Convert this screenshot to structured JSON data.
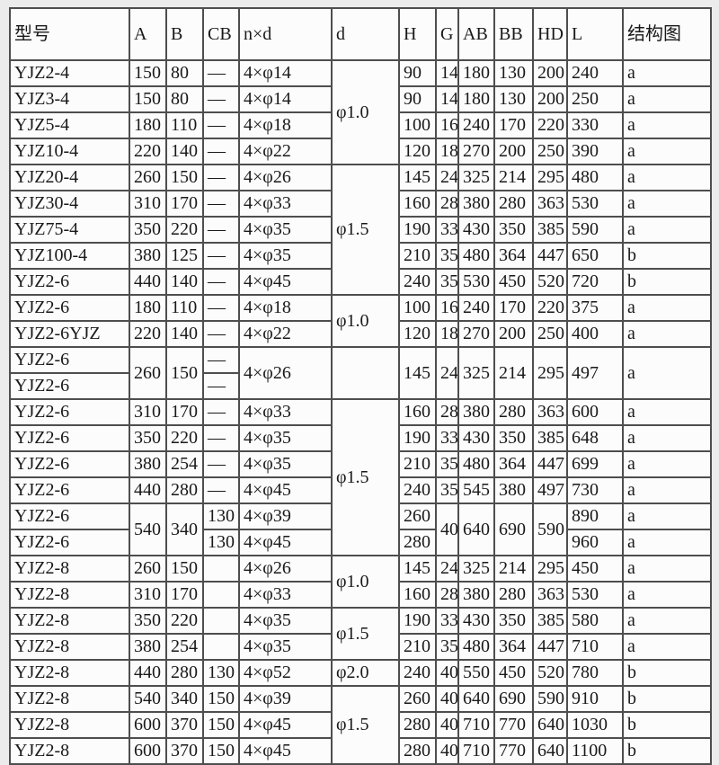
{
  "colors": {
    "page_bg": "#ececec",
    "cell_bg": "#fcfcfc",
    "grid_border": "#4e4e4e",
    "text": "#191919"
  },
  "table": {
    "columns": [
      "型号",
      "A",
      "B",
      "CB",
      "n×d",
      "d",
      "H",
      "G",
      "AB",
      "BB",
      "HD",
      "L",
      "结构图"
    ],
    "rows": [
      {
        "cells": [
          {
            "t": "YJZ2-4"
          },
          {
            "t": "150"
          },
          {
            "t": "80"
          },
          {
            "t": "—"
          },
          {
            "t": "4×φ14"
          },
          {
            "t": "φ1.0",
            "rs": 4
          },
          {
            "t": "90"
          },
          {
            "t": "14"
          },
          {
            "t": "180"
          },
          {
            "t": "130"
          },
          {
            "t": "200"
          },
          {
            "t": "240"
          },
          {
            "t": "a"
          }
        ]
      },
      {
        "cells": [
          {
            "t": "YJZ3-4"
          },
          {
            "t": "150"
          },
          {
            "t": "80"
          },
          {
            "t": "—"
          },
          {
            "t": "4×φ14"
          },
          {
            "t": "90"
          },
          {
            "t": "14"
          },
          {
            "t": "180"
          },
          {
            "t": "130"
          },
          {
            "t": "200"
          },
          {
            "t": "250"
          },
          {
            "t": "a"
          }
        ]
      },
      {
        "cells": [
          {
            "t": "YJZ5-4"
          },
          {
            "t": "180"
          },
          {
            "t": "110"
          },
          {
            "t": "—"
          },
          {
            "t": "4×φ18"
          },
          {
            "t": "100"
          },
          {
            "t": "16"
          },
          {
            "t": "240"
          },
          {
            "t": "170"
          },
          {
            "t": "220"
          },
          {
            "t": "330"
          },
          {
            "t": "a"
          }
        ]
      },
      {
        "cells": [
          {
            "t": "YJZ10-4"
          },
          {
            "t": "220"
          },
          {
            "t": "140"
          },
          {
            "t": "—"
          },
          {
            "t": "4×φ22"
          },
          {
            "t": "120"
          },
          {
            "t": "18"
          },
          {
            "t": "270"
          },
          {
            "t": "200"
          },
          {
            "t": "250"
          },
          {
            "t": "390"
          },
          {
            "t": "a"
          }
        ]
      },
      {
        "cells": [
          {
            "t": "YJZ20-4"
          },
          {
            "t": "260"
          },
          {
            "t": "150"
          },
          {
            "t": "—"
          },
          {
            "t": "4×φ26"
          },
          {
            "t": "φ1.5",
            "rs": 5
          },
          {
            "t": "145"
          },
          {
            "t": "24"
          },
          {
            "t": "325"
          },
          {
            "t": "214"
          },
          {
            "t": "295"
          },
          {
            "t": "480"
          },
          {
            "t": "a"
          }
        ]
      },
      {
        "cells": [
          {
            "t": "YJZ30-4"
          },
          {
            "t": "310"
          },
          {
            "t": "170"
          },
          {
            "t": "—"
          },
          {
            "t": "4×φ33"
          },
          {
            "t": "160"
          },
          {
            "t": "28"
          },
          {
            "t": "380"
          },
          {
            "t": "280"
          },
          {
            "t": "363"
          },
          {
            "t": "530"
          },
          {
            "t": "a"
          }
        ]
      },
      {
        "cells": [
          {
            "t": "YJZ75-4"
          },
          {
            "t": "350"
          },
          {
            "t": "220"
          },
          {
            "t": "—"
          },
          {
            "t": "4×φ35"
          },
          {
            "t": "190"
          },
          {
            "t": "33"
          },
          {
            "t": "430"
          },
          {
            "t": "350"
          },
          {
            "t": "385"
          },
          {
            "t": "590"
          },
          {
            "t": "a"
          }
        ]
      },
      {
        "cells": [
          {
            "t": "YJZ100-4"
          },
          {
            "t": "380"
          },
          {
            "t": "125"
          },
          {
            "t": "—"
          },
          {
            "t": "4×φ35"
          },
          {
            "t": "210"
          },
          {
            "t": "35"
          },
          {
            "t": "480"
          },
          {
            "t": "364"
          },
          {
            "t": "447"
          },
          {
            "t": "650"
          },
          {
            "t": "b"
          }
        ]
      },
      {
        "cells": [
          {
            "t": "YJZ2-6"
          },
          {
            "t": "440"
          },
          {
            "t": "140"
          },
          {
            "t": "—"
          },
          {
            "t": "4×φ45"
          },
          {
            "t": "240"
          },
          {
            "t": "35"
          },
          {
            "t": "530"
          },
          {
            "t": "450"
          },
          {
            "t": "520"
          },
          {
            "t": "720"
          },
          {
            "t": "b"
          }
        ]
      },
      {
        "cells": [
          {
            "t": "YJZ2-6"
          },
          {
            "t": "180"
          },
          {
            "t": "110"
          },
          {
            "t": "—"
          },
          {
            "t": "4×φ18"
          },
          {
            "t": "φ1.0",
            "rs": 2
          },
          {
            "t": "100"
          },
          {
            "t": "16"
          },
          {
            "t": "240"
          },
          {
            "t": "170"
          },
          {
            "t": "220"
          },
          {
            "t": "375"
          },
          {
            "t": "a"
          }
        ]
      },
      {
        "cells": [
          {
            "t": "YJZ2-6YJZ"
          },
          {
            "t": "220"
          },
          {
            "t": "140"
          },
          {
            "t": "—"
          },
          {
            "t": "4×φ22"
          },
          {
            "t": "120"
          },
          {
            "t": "18"
          },
          {
            "t": "270"
          },
          {
            "t": "200"
          },
          {
            "t": "250"
          },
          {
            "t": "400"
          },
          {
            "t": "a"
          }
        ]
      },
      {
        "cells": [
          {
            "t": "YJZ2-6"
          },
          {
            "t": "260",
            "rs": 2
          },
          {
            "t": "150",
            "rs": 2
          },
          {
            "t": "—"
          },
          {
            "t": "4×φ26",
            "rs": 2
          },
          {
            "t": "",
            "rs": 2
          },
          {
            "t": "145",
            "rs": 2
          },
          {
            "t": "24",
            "rs": 2
          },
          {
            "t": "325",
            "rs": 2
          },
          {
            "t": "214",
            "rs": 2
          },
          {
            "t": "295",
            "rs": 2
          },
          {
            "t": "497",
            "rs": 2
          },
          {
            "t": "a",
            "rs": 2
          }
        ]
      },
      {
        "cells": [
          {
            "t": "YJZ2-6"
          },
          {
            "t": "—"
          }
        ]
      },
      {
        "cells": [
          {
            "t": "YJZ2-6"
          },
          {
            "t": "310"
          },
          {
            "t": "170"
          },
          {
            "t": "—"
          },
          {
            "t": "4×φ33"
          },
          {
            "t": "φ1.5",
            "rs": 6
          },
          {
            "t": "160"
          },
          {
            "t": "28"
          },
          {
            "t": "380"
          },
          {
            "t": "280"
          },
          {
            "t": "363"
          },
          {
            "t": "600"
          },
          {
            "t": "a"
          }
        ]
      },
      {
        "cells": [
          {
            "t": "YJZ2-6"
          },
          {
            "t": "350"
          },
          {
            "t": "220"
          },
          {
            "t": "—"
          },
          {
            "t": "4×φ35"
          },
          {
            "t": "190"
          },
          {
            "t": "33"
          },
          {
            "t": "430"
          },
          {
            "t": "350"
          },
          {
            "t": "385"
          },
          {
            "t": "648"
          },
          {
            "t": "a"
          }
        ]
      },
      {
        "cells": [
          {
            "t": "YJZ2-6"
          },
          {
            "t": "380"
          },
          {
            "t": "254"
          },
          {
            "t": "—"
          },
          {
            "t": "4×φ35"
          },
          {
            "t": "210"
          },
          {
            "t": "35"
          },
          {
            "t": "480"
          },
          {
            "t": "364"
          },
          {
            "t": "447"
          },
          {
            "t": "699"
          },
          {
            "t": "a"
          }
        ]
      },
      {
        "cells": [
          {
            "t": "YJZ2-6"
          },
          {
            "t": "440"
          },
          {
            "t": "280"
          },
          {
            "t": "—"
          },
          {
            "t": "4×φ45"
          },
          {
            "t": "240"
          },
          {
            "t": "35"
          },
          {
            "t": "545"
          },
          {
            "t": "380"
          },
          {
            "t": "497"
          },
          {
            "t": "730"
          },
          {
            "t": "a"
          }
        ]
      },
      {
        "cells": [
          {
            "t": "YJZ2-6"
          },
          {
            "t": "540",
            "rs": 2
          },
          {
            "t": "340",
            "rs": 2
          },
          {
            "t": "130"
          },
          {
            "t": "4×φ39"
          },
          {
            "t": "260"
          },
          {
            "t": "40",
            "rs": 2
          },
          {
            "t": "640",
            "rs": 2
          },
          {
            "t": "690",
            "rs": 2
          },
          {
            "t": "590",
            "rs": 2
          },
          {
            "t": "890"
          },
          {
            "t": "a"
          }
        ]
      },
      {
        "cells": [
          {
            "t": "YJZ2-6"
          },
          {
            "t": "130"
          },
          {
            "t": "4×φ45"
          },
          {
            "t": "280"
          },
          {
            "t": "960"
          },
          {
            "t": "a"
          }
        ]
      },
      {
        "cells": [
          {
            "t": "YJZ2-8"
          },
          {
            "t": "260"
          },
          {
            "t": "150"
          },
          {
            "t": ""
          },
          {
            "t": "4×φ26"
          },
          {
            "t": "φ1.0",
            "rs": 2
          },
          {
            "t": "145"
          },
          {
            "t": "24"
          },
          {
            "t": "325"
          },
          {
            "t": "214"
          },
          {
            "t": "295"
          },
          {
            "t": "450"
          },
          {
            "t": "a"
          }
        ]
      },
      {
        "cells": [
          {
            "t": "YJZ2-8"
          },
          {
            "t": "310"
          },
          {
            "t": "170"
          },
          {
            "t": ""
          },
          {
            "t": "4×φ33"
          },
          {
            "t": "160"
          },
          {
            "t": "28"
          },
          {
            "t": "380"
          },
          {
            "t": "280"
          },
          {
            "t": "363"
          },
          {
            "t": "530"
          },
          {
            "t": "a"
          }
        ]
      },
      {
        "cells": [
          {
            "t": "YJZ2-8"
          },
          {
            "t": "350"
          },
          {
            "t": "220"
          },
          {
            "t": ""
          },
          {
            "t": "4×φ35"
          },
          {
            "t": "φ1.5",
            "rs": 2
          },
          {
            "t": "190"
          },
          {
            "t": "33"
          },
          {
            "t": "430"
          },
          {
            "t": "350"
          },
          {
            "t": "385"
          },
          {
            "t": "580"
          },
          {
            "t": "a"
          }
        ]
      },
      {
        "cells": [
          {
            "t": "YJZ2-8"
          },
          {
            "t": "380"
          },
          {
            "t": "254"
          },
          {
            "t": ""
          },
          {
            "t": "4×φ35"
          },
          {
            "t": "210"
          },
          {
            "t": "35"
          },
          {
            "t": "480"
          },
          {
            "t": "364"
          },
          {
            "t": "447"
          },
          {
            "t": "710"
          },
          {
            "t": "a"
          }
        ]
      },
      {
        "cells": [
          {
            "t": "YJZ2-8"
          },
          {
            "t": "440"
          },
          {
            "t": "280"
          },
          {
            "t": "130"
          },
          {
            "t": "4×φ52"
          },
          {
            "t": "φ2.0"
          },
          {
            "t": "240"
          },
          {
            "t": "40"
          },
          {
            "t": "550"
          },
          {
            "t": "450"
          },
          {
            "t": "520"
          },
          {
            "t": "780"
          },
          {
            "t": "b"
          }
        ]
      },
      {
        "cells": [
          {
            "t": "YJZ2-8"
          },
          {
            "t": "540"
          },
          {
            "t": "340"
          },
          {
            "t": "150"
          },
          {
            "t": "4×φ39"
          },
          {
            "t": "φ1.5",
            "rs": 3
          },
          {
            "t": "260"
          },
          {
            "t": "40"
          },
          {
            "t": "640"
          },
          {
            "t": "690"
          },
          {
            "t": "590"
          },
          {
            "t": "910"
          },
          {
            "t": "b"
          }
        ]
      },
      {
        "cells": [
          {
            "t": "YJZ2-8"
          },
          {
            "t": "600"
          },
          {
            "t": "370"
          },
          {
            "t": "150"
          },
          {
            "t": "4×φ45"
          },
          {
            "t": "280"
          },
          {
            "t": "40"
          },
          {
            "t": "710"
          },
          {
            "t": "770"
          },
          {
            "t": "640"
          },
          {
            "t": "1030"
          },
          {
            "t": "b"
          }
        ]
      },
      {
        "cells": [
          {
            "t": "YJZ2-8"
          },
          {
            "t": "600"
          },
          {
            "t": "370"
          },
          {
            "t": "150"
          },
          {
            "t": "4×φ45"
          },
          {
            "t": "280"
          },
          {
            "t": "40"
          },
          {
            "t": "710"
          },
          {
            "t": "770"
          },
          {
            "t": "640"
          },
          {
            "t": "1100"
          },
          {
            "t": "b"
          }
        ]
      }
    ]
  }
}
